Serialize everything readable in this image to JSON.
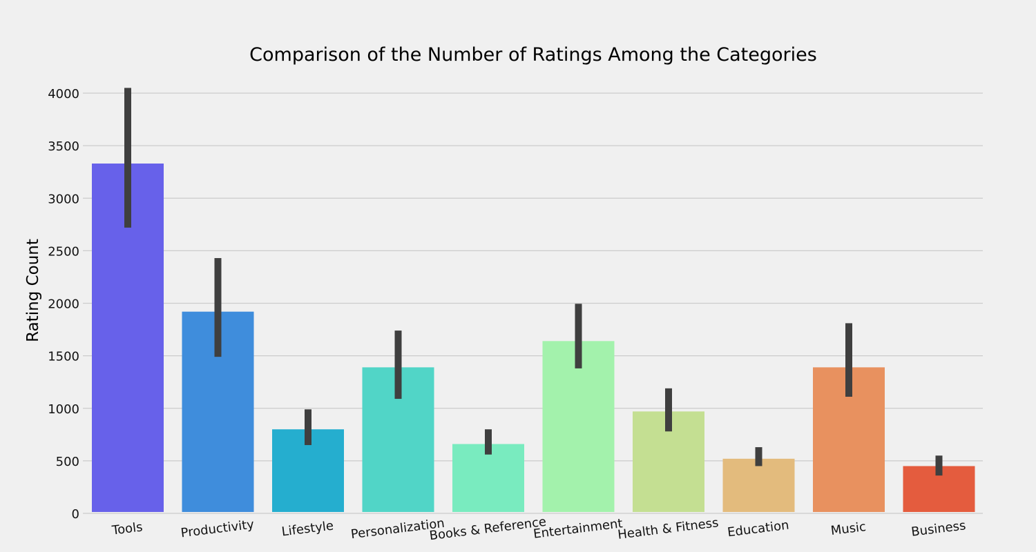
{
  "chart_data": {
    "type": "bar",
    "title": "Comparison of the Number of Ratings Among the Categories",
    "xlabel": "",
    "ylabel": "Rating Count",
    "ylim": [
      0,
      4000
    ],
    "yticks": [
      0,
      500,
      1000,
      1500,
      2000,
      2500,
      3000,
      3500,
      4000
    ],
    "grid": "horizontal",
    "categories": [
      "Tools",
      "Productivity",
      "Lifestyle",
      "Personalization",
      "Books & Reference",
      "Entertainment",
      "Health & Fitness",
      "Education",
      "Music",
      "Business"
    ],
    "values": [
      3330,
      1920,
      800,
      1390,
      660,
      1640,
      970,
      520,
      1390,
      450
    ],
    "error_low": [
      2720,
      1490,
      650,
      1090,
      560,
      1380,
      780,
      450,
      1110,
      360
    ],
    "error_high": [
      4050,
      2430,
      990,
      1740,
      800,
      1995,
      1190,
      630,
      1810,
      550
    ],
    "colors": [
      "#6761ea",
      "#3f8ddc",
      "#25aecf",
      "#51d5c7",
      "#79ebbf",
      "#a3f2ac",
      "#c4df92",
      "#e3bb7d",
      "#e8915f",
      "#e45c3e"
    ],
    "error_color": "#3f3f3f",
    "background": "#f0f0f0"
  }
}
